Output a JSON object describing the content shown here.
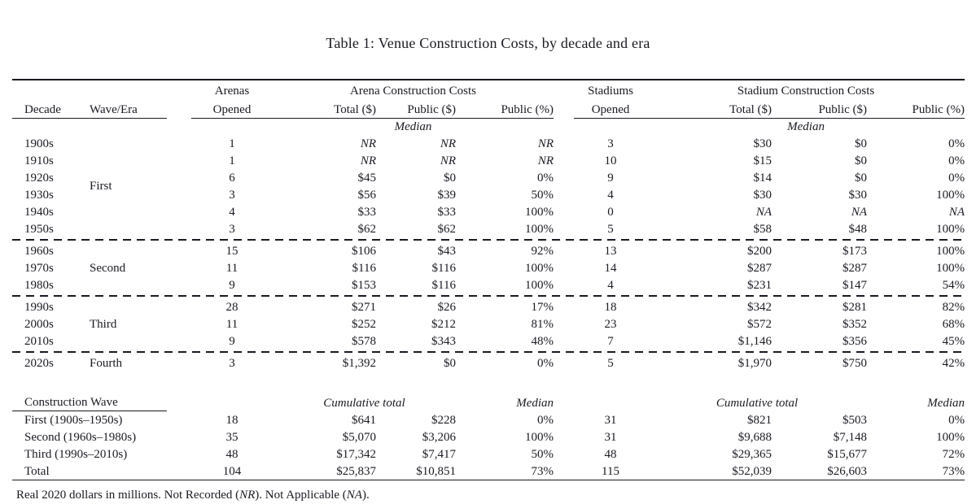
{
  "title": "Table 1: Venue Construction Costs, by decade and era",
  "table": {
    "group_headers": {
      "arenas": "Arenas",
      "arena_costs": "Arena Construction Costs",
      "stadiums": "Stadiums",
      "stadium_costs": "Stadium Construction Costs"
    },
    "columns": {
      "decade": "Decade",
      "wave": "Wave/Era",
      "opened": "Opened",
      "total": "Total ($)",
      "public_dollar": "Public ($)",
      "public_pct": "Public (%)"
    },
    "median_label": "Median",
    "rows": [
      {
        "decade": "1900s",
        "wave": "First",
        "wave_span": 6,
        "arena": [
          "1",
          "NR",
          "NR",
          "NR"
        ],
        "stadium": [
          "3",
          "$30",
          "$0",
          "0%"
        ]
      },
      {
        "decade": "1910s",
        "arena": [
          "1",
          "NR",
          "NR",
          "NR"
        ],
        "stadium": [
          "10",
          "$15",
          "$0",
          "0%"
        ]
      },
      {
        "decade": "1920s",
        "arena": [
          "6",
          "$45",
          "$0",
          "0%"
        ],
        "stadium": [
          "9",
          "$14",
          "$0",
          "0%"
        ]
      },
      {
        "decade": "1930s",
        "arena": [
          "3",
          "$56",
          "$39",
          "50%"
        ],
        "stadium": [
          "4",
          "$30",
          "$30",
          "100%"
        ]
      },
      {
        "decade": "1940s",
        "arena": [
          "4",
          "$33",
          "$33",
          "100%"
        ],
        "stadium": [
          "0",
          "NA",
          "NA",
          "NA"
        ]
      },
      {
        "decade": "1950s",
        "arena": [
          "3",
          "$62",
          "$62",
          "100%"
        ],
        "stadium": [
          "5",
          "$58",
          "$48",
          "100%"
        ]
      },
      {
        "decade": "1960s",
        "dashed_before": true,
        "wave": "Second",
        "wave_span": 3,
        "arena": [
          "15",
          "$106",
          "$43",
          "92%"
        ],
        "stadium": [
          "13",
          "$200",
          "$173",
          "100%"
        ]
      },
      {
        "decade": "1970s",
        "arena": [
          "11",
          "$116",
          "$116",
          "100%"
        ],
        "stadium": [
          "14",
          "$287",
          "$287",
          "100%"
        ]
      },
      {
        "decade": "1980s",
        "arena": [
          "9",
          "$153",
          "$116",
          "100%"
        ],
        "stadium": [
          "4",
          "$231",
          "$147",
          "54%"
        ]
      },
      {
        "decade": "1990s",
        "dashed_before": true,
        "wave": "Third",
        "wave_span": 3,
        "arena": [
          "28",
          "$271",
          "$26",
          "17%"
        ],
        "stadium": [
          "18",
          "$342",
          "$281",
          "82%"
        ]
      },
      {
        "decade": "2000s",
        "arena": [
          "11",
          "$252",
          "$212",
          "81%"
        ],
        "stadium": [
          "23",
          "$572",
          "$352",
          "68%"
        ]
      },
      {
        "decade": "2010s",
        "arena": [
          "9",
          "$578",
          "$343",
          "48%"
        ],
        "stadium": [
          "7",
          "$1,146",
          "$356",
          "45%"
        ]
      },
      {
        "decade": "2020s",
        "dashed_before": true,
        "wave": "Fourth",
        "wave_span": 1,
        "arena": [
          "3",
          "$1,392",
          "$0",
          "0%"
        ],
        "stadium": [
          "5",
          "$1,970",
          "$750",
          "42%"
        ]
      }
    ],
    "summary": {
      "header": {
        "label": "Construction Wave",
        "cumulative_label": "Cumulative total",
        "median_label": "Median"
      },
      "rows": [
        {
          "label": "First (1900s–1950s)",
          "arena": [
            "18",
            "$641",
            "$228",
            "0%"
          ],
          "stadium": [
            "31",
            "$821",
            "$503",
            "0%"
          ]
        },
        {
          "label": "Second (1960s–1980s)",
          "arena": [
            "35",
            "$5,070",
            "$3,206",
            "100%"
          ],
          "stadium": [
            "31",
            "$9,688",
            "$7,148",
            "100%"
          ]
        },
        {
          "label": "Third (1990s–2010s)",
          "arena": [
            "48",
            "$17,342",
            "$7,417",
            "50%"
          ],
          "stadium": [
            "48",
            "$29,365",
            "$15,677",
            "72%"
          ]
        },
        {
          "label": "Total",
          "arena": [
            "104",
            "$25,837",
            "$10,851",
            "73%"
          ],
          "stadium": [
            "115",
            "$52,039",
            "$26,603",
            "73%"
          ]
        }
      ]
    },
    "footnote": {
      "segments": [
        {
          "text": "Real 2020 dollars in millions. Not Recorded (",
          "italic": false
        },
        {
          "text": "NR",
          "italic": true
        },
        {
          "text": "). Not Applicable (",
          "italic": false
        },
        {
          "text": "NA",
          "italic": true
        },
        {
          "text": ").",
          "italic": false
        }
      ]
    }
  }
}
